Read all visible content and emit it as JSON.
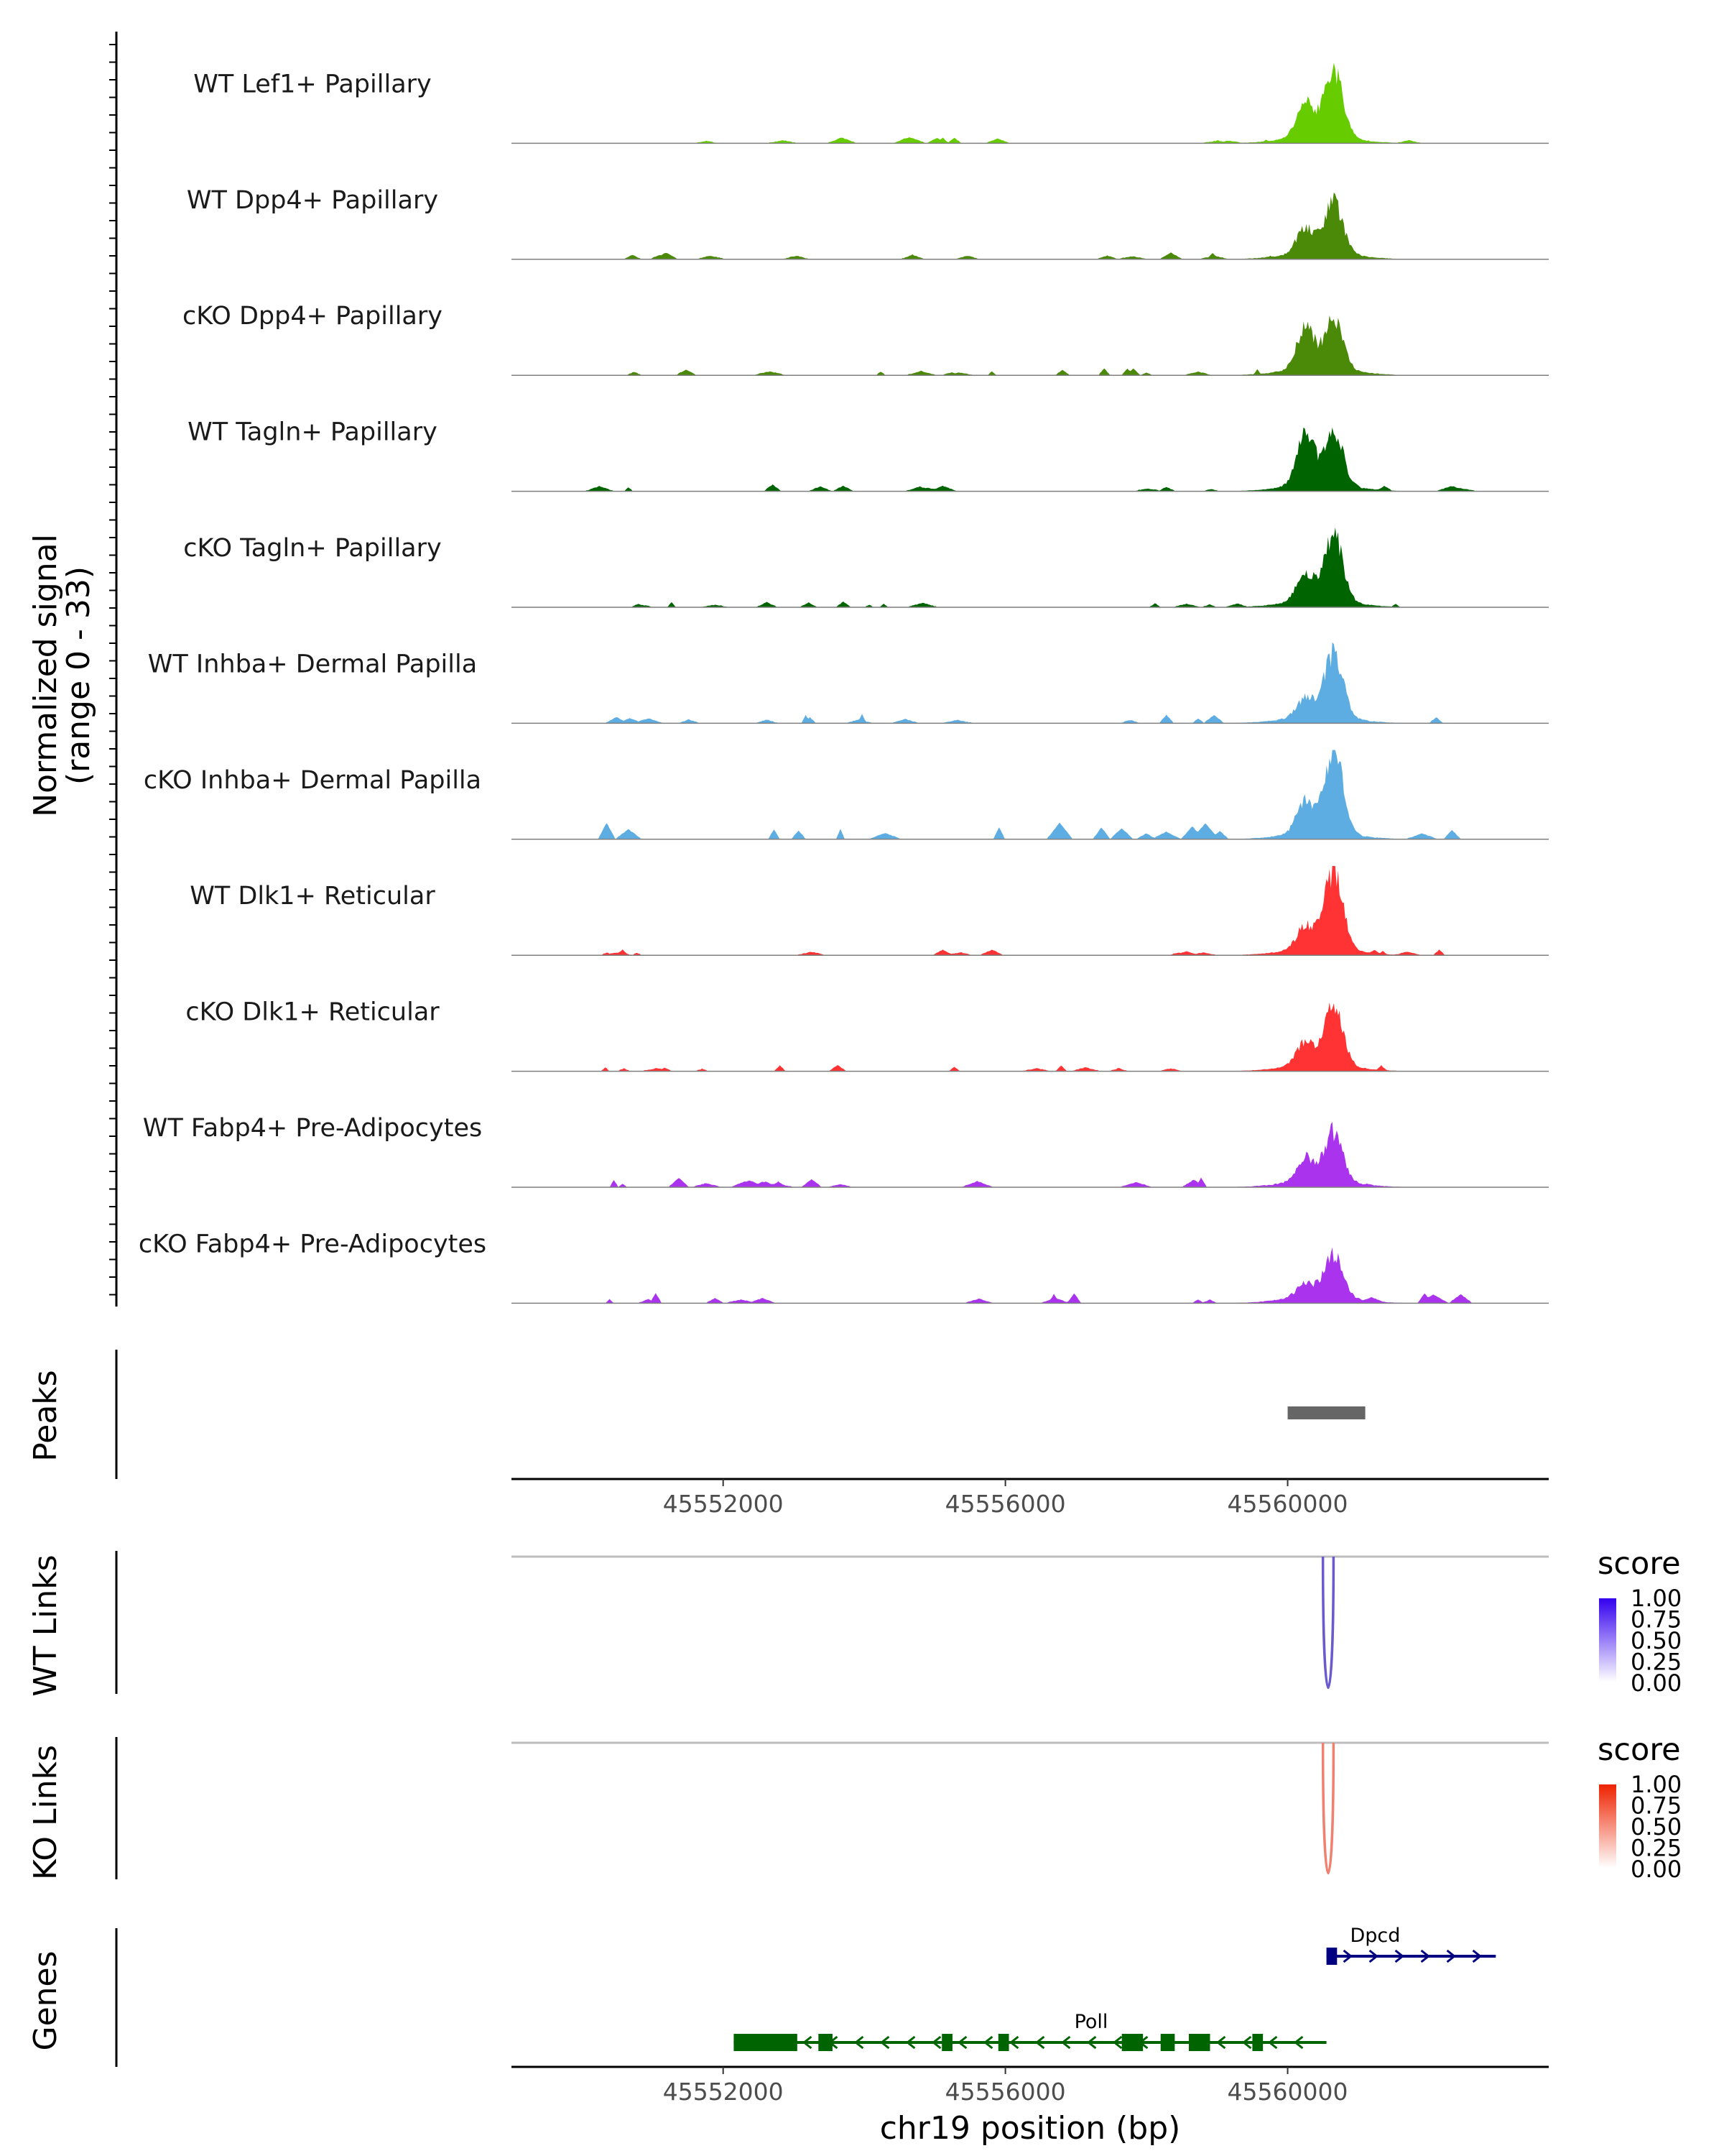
{
  "chart_data": {
    "type": "area",
    "title": "",
    "xlabel": "chr19 position (bp)",
    "xlim": [
      45549000,
      45563700
    ],
    "x_ticks": [
      45552000,
      45556000,
      45560000
    ],
    "x_tick_labels": [
      "45552000",
      "45556000",
      "45560000"
    ],
    "coverage": {
      "ylabel_line1": "Normalized signal",
      "ylabel_line2": "(range 0 - 33)",
      "ylim": [
        0,
        33
      ],
      "tracks": [
        {
          "name": "WT Lef1+ Papillary",
          "color": "#66CC00",
          "peak": 29,
          "secondary": 15,
          "noise": 2,
          "seed": 11
        },
        {
          "name": "WT Dpp4+ Papillary",
          "color": "#4B8A08",
          "peak": 22,
          "secondary": 11,
          "noise": 2,
          "seed": 23
        },
        {
          "name": "cKO Dpp4+ Papillary",
          "color": "#4B8A08",
          "peak": 21,
          "secondary": 18,
          "noise": 2,
          "seed": 37
        },
        {
          "name": "WT Tagln+ Papillary",
          "color": "#006400",
          "peak": 24,
          "secondary": 22,
          "noise": 2,
          "seed": 41
        },
        {
          "name": "cKO Tagln+ Papillary",
          "color": "#006400",
          "peak": 28,
          "secondary": 12,
          "noise": 2,
          "seed": 53
        },
        {
          "name": "WT Inhba+ Dermal Papilla",
          "color": "#5DADE2",
          "peak": 27,
          "secondary": 8,
          "noise": 3,
          "seed": 67
        },
        {
          "name": "cKO Inhba+ Dermal Papilla",
          "color": "#5DADE2",
          "peak": 36,
          "secondary": 14,
          "noise": 5,
          "seed": 71
        },
        {
          "name": "WT Dlk1+ Reticular",
          "color": "#FF3333",
          "peak": 33,
          "secondary": 10,
          "noise": 2,
          "seed": 83
        },
        {
          "name": "cKO Dlk1+ Reticular",
          "color": "#FF3333",
          "peak": 24,
          "secondary": 10,
          "noise": 2,
          "seed": 97
        },
        {
          "name": "WT Fabp4+ Pre-Adipocytes",
          "color": "#AA33EE",
          "peak": 21,
          "secondary": 10,
          "noise": 3,
          "seed": 101
        },
        {
          "name": "cKO Fabp4+ Pre-Adipocytes",
          "color": "#AA33EE",
          "peak": 18,
          "secondary": 6,
          "noise": 3,
          "seed": 113
        }
      ]
    },
    "peaks": {
      "label": "Peaks",
      "regions": [
        {
          "start": 45560000,
          "end": 45561100
        }
      ]
    },
    "links": [
      {
        "label": "WT Links",
        "color": "#6A5ACD",
        "links": [
          {
            "start": 45560500,
            "end": 45560650,
            "score": 0.7
          }
        ],
        "legend": {
          "title": "score",
          "labels": [
            "1.00",
            "0.75",
            "0.50",
            "0.25",
            "0.00"
          ],
          "high": "#3300EE",
          "low": "#FFFFFF"
        }
      },
      {
        "label": "KO Links",
        "color": "#F08070",
        "links": [
          {
            "start": 45560500,
            "end": 45560650,
            "score": 0.55
          }
        ],
        "legend": {
          "title": "score",
          "labels": [
            "1.00",
            "0.75",
            "0.50",
            "0.25",
            "0.00"
          ],
          "high": "#EE2200",
          "low": "#FFFFFF"
        }
      }
    ],
    "genes": {
      "label": "Genes",
      "items": [
        {
          "name": "Dpcd",
          "strand": "+",
          "start": 45560550,
          "end": 45562950,
          "color": "#000080",
          "row": 0,
          "exons": [
            [
              45560550,
              45560700
            ]
          ]
        },
        {
          "name": "Poll",
          "strand": "-",
          "start": 45552150,
          "end": 45560550,
          "color": "#006400",
          "row": 1,
          "exons": [
            [
              45552150,
              45553050
            ],
            [
              45553350,
              45553550
            ],
            [
              45555100,
              45555250
            ],
            [
              45555900,
              45556050
            ],
            [
              45557650,
              45557950
            ],
            [
              45558200,
              45558400
            ],
            [
              45558600,
              45558900
            ],
            [
              45559500,
              45559650
            ]
          ]
        }
      ]
    }
  }
}
